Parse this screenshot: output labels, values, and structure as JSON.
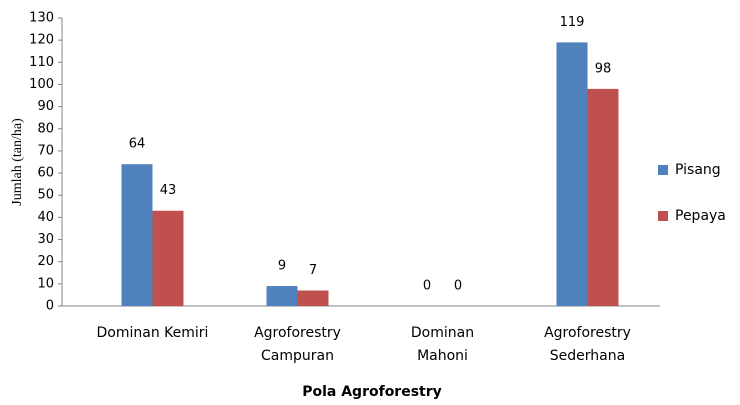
{
  "chart_data": {
    "type": "bar",
    "xlabel": "Pola Agroforestry",
    "ylabel": "Jumlah (tan/ha)",
    "categories": [
      "Dominan Kemiri",
      "Agroforestry\nCampuran",
      "Dominan\nMahoni",
      "Agroforestry\nSederhana"
    ],
    "series": [
      {
        "name": "Pisang",
        "color": "#4f81bd",
        "values": [
          64,
          9,
          0,
          119
        ]
      },
      {
        "name": "Pepaya",
        "color": "#c0504d",
        "values": [
          43,
          7,
          0,
          98
        ]
      }
    ],
    "ylim": [
      0,
      130
    ],
    "yticks": [
      0,
      10,
      20,
      30,
      40,
      50,
      60,
      70,
      80,
      90,
      100,
      110,
      120,
      130
    ],
    "grid": false,
    "legend": "right"
  }
}
